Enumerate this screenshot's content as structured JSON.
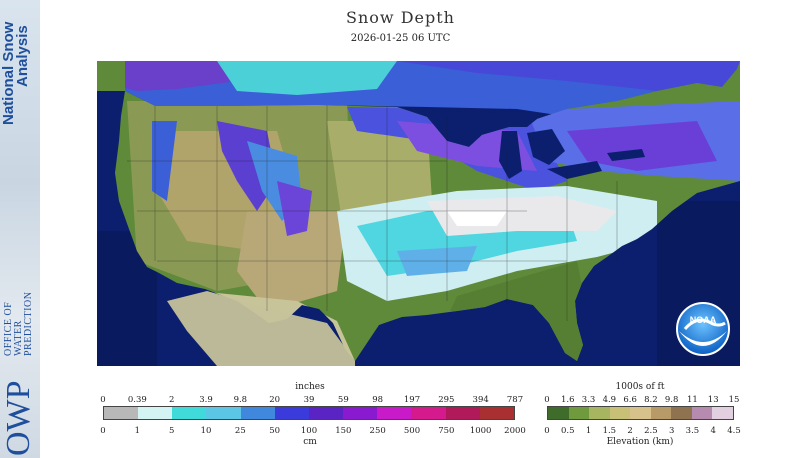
{
  "sidebar": {
    "brand_line1": "National Snow",
    "brand_line2": "Analysis",
    "org_line1": "OFFICE OF",
    "org_line2": "WATER",
    "org_line3": "PREDICTION",
    "org_logo": "OWP"
  },
  "header": {
    "title": "Snow Depth",
    "datetime": "2026-01-25 06 UTC"
  },
  "map": {
    "noaa_badge": "NOAA",
    "icon": "noaa-logo-icon"
  },
  "snow_legend": {
    "unit_top": "inches",
    "unit_bottom": "cm",
    "inches": [
      "0",
      "0.39",
      "2",
      "3.9",
      "9.8",
      "20",
      "39",
      "59",
      "98",
      "197",
      "295",
      "394",
      "787"
    ],
    "cm": [
      "0",
      "1",
      "5",
      "10",
      "25",
      "50",
      "100",
      "150",
      "250",
      "500",
      "750",
      "1000",
      "2000"
    ],
    "colors": [
      "#b8b8b8",
      "#d4f4f4",
      "#40dada",
      "#5cc6e6",
      "#3f88dd",
      "#3b3bdb",
      "#5a24c4",
      "#8a1ad0",
      "#c81ac8",
      "#d41a8c",
      "#b01a5a",
      "#a83030"
    ]
  },
  "elevation_legend": {
    "unit_top": "1000s of ft",
    "unit_bottom": "Elevation (km)",
    "feet": [
      "0",
      "1.6",
      "3.3",
      "4.9",
      "6.6",
      "8.2",
      "9.8",
      "11",
      "13",
      "15"
    ],
    "km": [
      "0",
      "0.5",
      "1",
      "1.5",
      "2",
      "2.5",
      "3",
      "3.5",
      "4",
      "4.5"
    ],
    "colors": [
      "#3f6b2b",
      "#6f9a3d",
      "#a8b560",
      "#c9c078",
      "#d8c28c",
      "#b89a68",
      "#8f7350",
      "#b78ab0",
      "#e2cfe0"
    ]
  }
}
